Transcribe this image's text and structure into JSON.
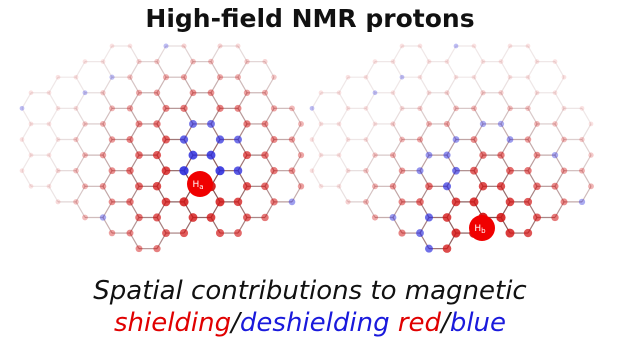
{
  "header": {
    "title": "High-field NMR protons"
  },
  "figures": [
    {
      "label": "H",
      "subscript": "a"
    },
    {
      "label": "H",
      "subscript": "b"
    }
  ],
  "caption": {
    "line1": "Spatial contributions to magnetic",
    "line2": [
      "shielding",
      "/",
      "deshielding",
      "red",
      "/",
      "blue"
    ]
  }
}
